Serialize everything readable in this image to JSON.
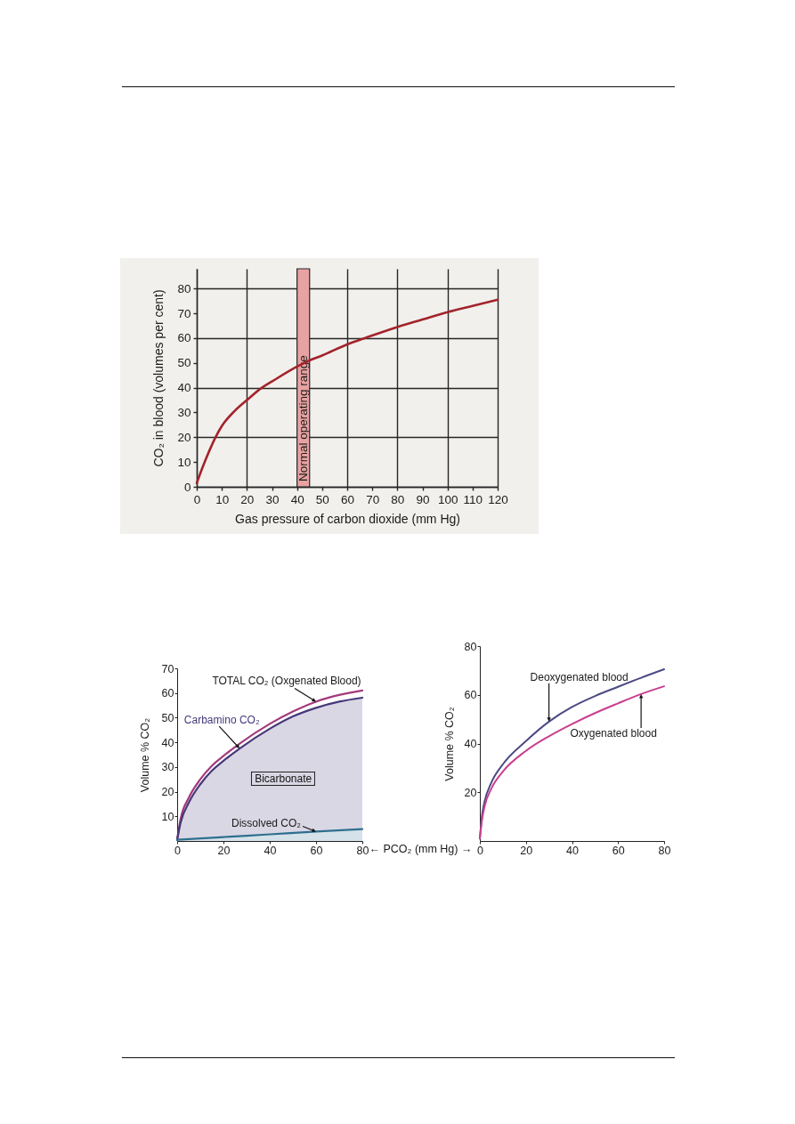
{
  "chart_data": [
    {
      "type": "line",
      "xlabel": "Gas pressure of carbon dioxide (mm Hg)",
      "ylabel": "CO₂ in blood (volumes per cent)",
      "x": [
        0,
        2,
        5,
        7.5,
        10,
        15,
        20,
        26,
        30,
        40,
        45,
        50,
        60,
        67,
        80,
        90,
        100,
        110,
        120
      ],
      "values": [
        1.5,
        7,
        14.5,
        20,
        24.5,
        30.5,
        35,
        40,
        42.5,
        48.5,
        51,
        53,
        57.5,
        60,
        64.5,
        67.5,
        70.5,
        73,
        75.5
      ],
      "color": "#a3232b",
      "xlim": [
        0,
        120
      ],
      "ylim": [
        0,
        88
      ],
      "xticks": [
        0,
        10,
        20,
        30,
        40,
        50,
        60,
        70,
        80,
        90,
        100,
        110,
        120
      ],
      "yticks": [
        0,
        10,
        20,
        30,
        40,
        50,
        60,
        70,
        80
      ],
      "grid": true,
      "bands": [
        {
          "axis": "x",
          "from": 40,
          "to": 45,
          "label": "Normal operating range",
          "color": "#e8a2a2"
        }
      ]
    },
    {
      "type": "line",
      "xlabel": "← PCO₂ (mm Hg) →",
      "ylabel": "Volume % CO₂",
      "xlim": [
        0,
        80
      ],
      "ylim": [
        0,
        70
      ],
      "xticks": [
        0,
        20,
        40,
        60,
        80
      ],
      "yticks": [
        10,
        20,
        30,
        40,
        50,
        60,
        70
      ],
      "series": [
        {
          "name": "TOTAL CO₂ (Oxgenated Blood)",
          "color": "#a33a7c",
          "x": [
            0,
            1.5,
            5,
            10,
            15,
            20,
            27,
            40,
            50,
            60,
            70,
            80
          ],
          "values": [
            0.5,
            9,
            17.5,
            25,
            30.5,
            34.5,
            39.5,
            47.5,
            52.5,
            56.5,
            59.2,
            61
          ]
        },
        {
          "name": "Carbamino CO₂",
          "type": "area",
          "color": "#46387a",
          "x": [
            0,
            1.5,
            5,
            10,
            15,
            20,
            27,
            40,
            50,
            60,
            70,
            80
          ],
          "values": [
            0.5,
            7.5,
            15.5,
            23,
            28.5,
            32.5,
            37.5,
            45.5,
            50.5,
            54,
            56.5,
            58.1
          ]
        },
        {
          "name": "Dissolved CO₂",
          "type": "area",
          "color": "#2f6f8f",
          "x": [
            0,
            20,
            40,
            60,
            80
          ],
          "values": [
            0.5,
            1.6,
            2.7,
            3.8,
            4.8
          ]
        }
      ],
      "annotations": [
        "Bicarbonate"
      ]
    },
    {
      "type": "line",
      "ylabel": "Volume % CO₂",
      "xlim": [
        0,
        80
      ],
      "ylim": [
        0,
        80
      ],
      "xticks": [
        0,
        20,
        40,
        60,
        80
      ],
      "yticks": [
        20,
        40,
        60,
        80
      ],
      "series": [
        {
          "name": "Deoxygenated blood",
          "color": "#4b4a84",
          "x": [
            0,
            1,
            2,
            5,
            10,
            20,
            30,
            40,
            50,
            60,
            70,
            80
          ],
          "values": [
            1,
            11,
            16,
            24,
            31.5,
            41,
            49,
            55,
            59.5,
            63.3,
            67,
            70.5
          ]
        },
        {
          "name": "Oxygenated blood",
          "color": "#c93f8e",
          "x": [
            0,
            1,
            2,
            5,
            10,
            20,
            30,
            40,
            50,
            60,
            70,
            80
          ],
          "values": [
            1,
            9,
            14,
            21.5,
            28.5,
            37,
            43,
            48,
            52.5,
            56.5,
            60.3,
            63.5
          ]
        }
      ]
    }
  ]
}
